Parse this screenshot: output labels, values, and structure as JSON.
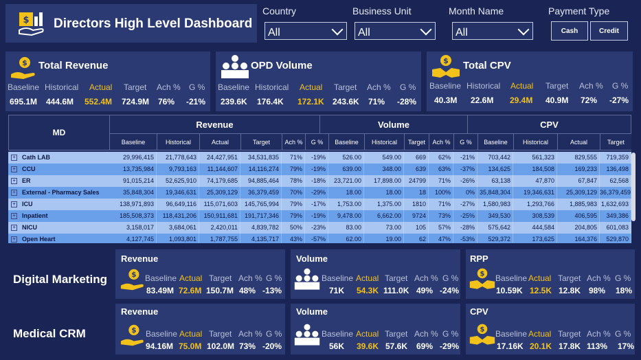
{
  "header": {
    "title": "Directors High Level Dashboard"
  },
  "filters": {
    "country": {
      "label": "Country",
      "value": "All"
    },
    "business_unit": {
      "label": "Business Unit",
      "value": "All"
    },
    "month_name": {
      "label": "Month Name",
      "value": "All"
    },
    "payment_type": {
      "label": "Payment Type",
      "options": [
        "Cash",
        "Credit"
      ]
    }
  },
  "metric_labels": {
    "baseline": "Baseline",
    "historical": "Historical",
    "actual": "Actual",
    "target": "Target",
    "ach": "Ach %",
    "g": "G %"
  },
  "kpis": {
    "revenue": {
      "title": "Total Revenue",
      "baseline": "695.1M",
      "historical": "444.6M",
      "actual": "552.4M",
      "target": "724.9M",
      "ach": "76%",
      "g": "-21%"
    },
    "opd": {
      "title": "OPD Volume",
      "baseline": "239.6K",
      "historical": "176.4K",
      "actual": "172.1K",
      "target": "243.6K",
      "ach": "71%",
      "g": "-28%"
    },
    "cpv": {
      "title": "Total CPV",
      "baseline": "40.3M",
      "historical": "22.6M",
      "actual": "29.4M",
      "target": "40.9M",
      "ach": "72%",
      "g": "-27%"
    }
  },
  "table": {
    "md_header": "MD",
    "groups": [
      "Revenue",
      "Volume",
      "CPV"
    ],
    "subheaders": [
      "Baseline",
      "Historical",
      "Actual",
      "Target",
      "Ach %",
      "G %",
      "Baseline",
      "Historical",
      "Target",
      "Ach %",
      "G %",
      "Baseline",
      "Historical",
      "Actual",
      "Target"
    ],
    "rows": [
      {
        "md": "Cath LAB",
        "cells": [
          "29,996,415",
          "21,778,643",
          "24,427,951",
          "34,531,835",
          "71%",
          "-19%",
          "526.00",
          "549.00",
          "669",
          "62%",
          "-21%",
          "703,442",
          "561,323",
          "829,555",
          "719,359"
        ]
      },
      {
        "md": "CCU",
        "cells": [
          "13,735,984",
          "9,793,163",
          "11,144,607",
          "14,116,274",
          "79%",
          "-19%",
          "639.00",
          "348.00",
          "639",
          "63%",
          "-37%",
          "134,625",
          "184,508",
          "169,233",
          "136,498"
        ]
      },
      {
        "md": "ER",
        "cells": [
          "91,015,214",
          "52,625,910",
          "74,179,685",
          "94,885,464",
          "78%",
          "-18%",
          "23,721.00",
          "17,898.00",
          "24799",
          "71%",
          "-26%",
          "63,138",
          "47,870",
          "67,847",
          "62,568"
        ]
      },
      {
        "md": "External - Pharmacy Sales",
        "cells": [
          "35,848,304",
          "19,346,631",
          "25,309,129",
          "36,379,459",
          "70%",
          "-29%",
          "18.00",
          "18.00",
          "18",
          "100%",
          "0%",
          "35,848,304",
          "19,346,631",
          "25,309,129",
          "36,379,459"
        ]
      },
      {
        "md": "ICU",
        "cells": [
          "138,971,893",
          "96,649,116",
          "115,071,603",
          "145,765,994",
          "79%",
          "-17%",
          "1,753.00",
          "1,375.00",
          "1810",
          "71%",
          "-27%",
          "1,580,983",
          "1,293,766",
          "1,885,983",
          "1,632,693"
        ]
      },
      {
        "md": "Inpatient",
        "cells": [
          "185,508,373",
          "118,431,206",
          "150,911,681",
          "191,717,346",
          "79%",
          "-19%",
          "9,478.00",
          "6,662.00",
          "9724",
          "73%",
          "-25%",
          "349,530",
          "308,539",
          "406,595",
          "349,386"
        ]
      },
      {
        "md": "NICU",
        "cells": [
          "3,158,017",
          "3,684,061",
          "2,420,011",
          "4,839,782",
          "50%",
          "-23%",
          "83.00",
          "73.00",
          "105",
          "57%",
          "-28%",
          "575,642",
          "444,584",
          "204,805",
          "601,083"
        ]
      },
      {
        "md": "Open Heart",
        "cells": [
          "4,127,745",
          "1,093,801",
          "1,787,755",
          "4,135,717",
          "43%",
          "-57%",
          "62.00",
          "19.00",
          "62",
          "47%",
          "-53%",
          "529,372",
          "173,625",
          "164,376",
          "529,870"
        ]
      }
    ]
  },
  "sections": {
    "digital_marketing": {
      "label": "Digital Marketing",
      "revenue": {
        "title": "Revenue",
        "baseline": "83.49M",
        "actual": "72.6M",
        "target": "150.7M",
        "ach": "48%",
        "g": "-13%"
      },
      "volume": {
        "title": "Volume",
        "baseline": "71K",
        "actual": "54.3K",
        "target": "111.0K",
        "ach": "49%",
        "g": "-24%"
      },
      "third": {
        "title": "RPP",
        "baseline": "10.59K",
        "actual": "12.5K",
        "target": "12.8K",
        "ach": "98%",
        "g": "18%"
      }
    },
    "medical_crm": {
      "label": "Medical CRM",
      "revenue": {
        "title": "Revenue",
        "baseline": "94.16M",
        "actual": "75.0M",
        "target": "102.0M",
        "ach": "73%",
        "g": "-20%"
      },
      "volume": {
        "title": "Volume",
        "baseline": "56K",
        "actual": "39.6K",
        "target": "57.6K",
        "ach": "69%",
        "g": "-29%"
      },
      "third": {
        "title": "CPV",
        "baseline": "17.16K",
        "actual": "20.1K",
        "target": "17.8K",
        "ach": "113%",
        "g": "17%"
      }
    }
  },
  "colors": {
    "background": "#1a2555",
    "card": "#2b3a72",
    "accent": "#f2c21b",
    "row_light": "#a9c6f3",
    "row_dark": "#6aa0ea",
    "table_header": "#2b7de2"
  }
}
